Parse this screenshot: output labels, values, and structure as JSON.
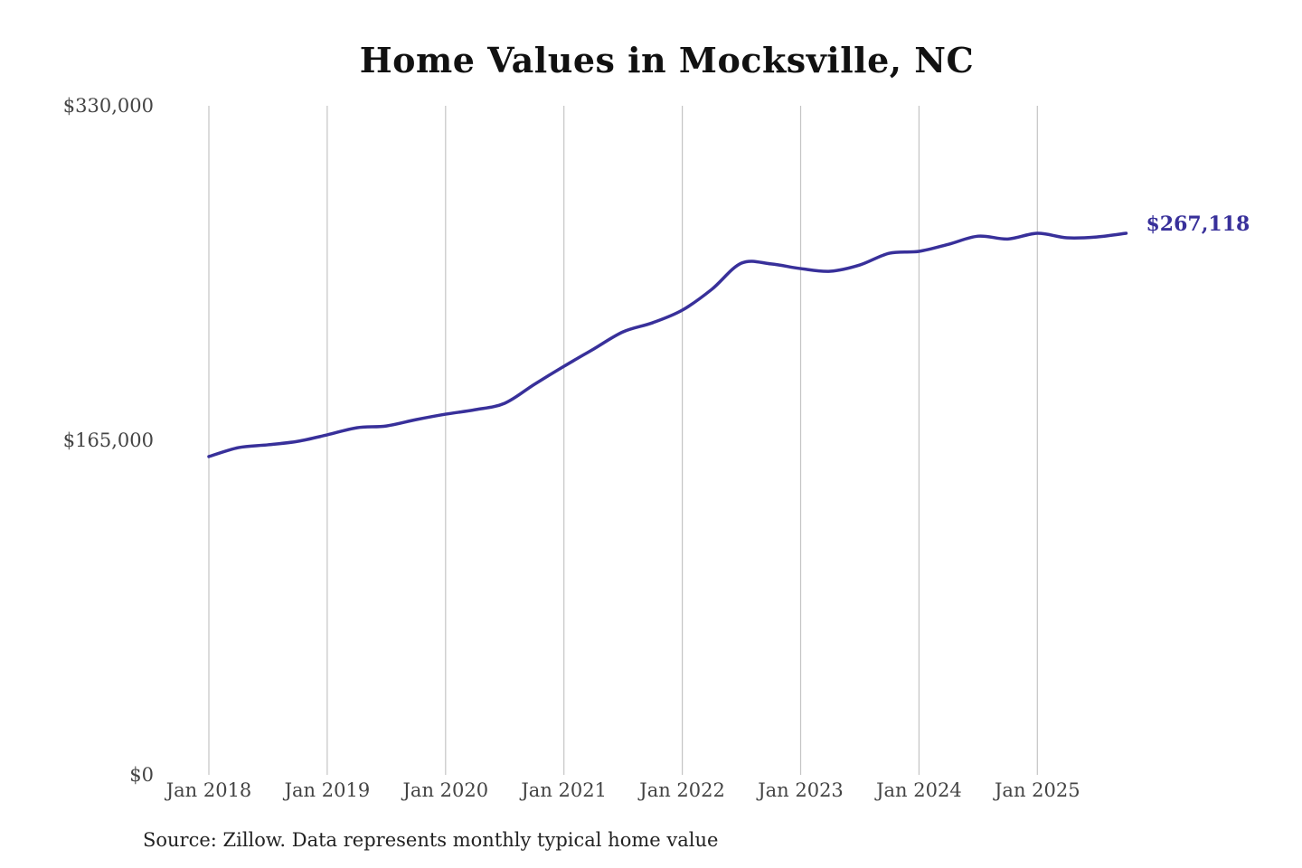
{
  "chart_data": {
    "type": "line",
    "title": "Home Values in Mocksville, NC",
    "xlabel": "",
    "ylabel": "",
    "ylim": [
      0,
      330000
    ],
    "y_ticks": [
      0,
      165000,
      330000
    ],
    "y_tick_labels": [
      "$0",
      "$165,000",
      "$330,000"
    ],
    "x_tick_labels": [
      "Jan 2018",
      "Jan 2019",
      "Jan 2020",
      "Jan 2021",
      "Jan 2022",
      "Jan 2023",
      "Jan 2024",
      "Jan 2025"
    ],
    "grid": "vertical",
    "line_color": "#38309a",
    "end_label": "$267,118",
    "series": [
      {
        "x": [
          "2018-01",
          "2018-04",
          "2018-07",
          "2018-10",
          "2019-01",
          "2019-04",
          "2019-07",
          "2019-10",
          "2020-01",
          "2020-04",
          "2020-07",
          "2020-10",
          "2021-01",
          "2021-04",
          "2021-07",
          "2021-10",
          "2022-01",
          "2022-04",
          "2022-07",
          "2022-10",
          "2023-01",
          "2023-04",
          "2023-07",
          "2023-10",
          "2024-01",
          "2024-04",
          "2024-07",
          "2024-10",
          "2025-01",
          "2025-04",
          "2025-07",
          "2025-10"
        ],
        "values": [
          157000,
          161400,
          162800,
          164500,
          167700,
          171200,
          172100,
          175200,
          177900,
          180100,
          183300,
          192600,
          201500,
          210000,
          218500,
          223000,
          229200,
          239500,
          252400,
          252000,
          249700,
          248400,
          251500,
          257300,
          258200,
          261700,
          265700,
          264300,
          267100,
          264900,
          265300,
          267118
        ]
      }
    ]
  },
  "source": "Source: Zillow. Data represents monthly typical home value"
}
